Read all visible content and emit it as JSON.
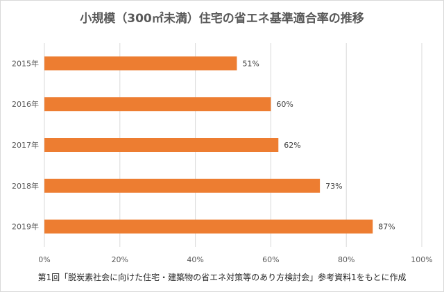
{
  "chart_data": {
    "type": "bar",
    "orientation": "horizontal",
    "title": "小規模（300㎡未満）住宅の省エネ基準適合率の推移",
    "categories": [
      "2015年",
      "2016年",
      "2017年",
      "2018年",
      "2019年"
    ],
    "values": [
      51,
      60,
      62,
      73,
      87
    ],
    "data_labels": [
      "51%",
      "60%",
      "62%",
      "73%",
      "87%"
    ],
    "xlim": [
      0,
      100
    ],
    "xticks": [
      0,
      20,
      40,
      60,
      80,
      100
    ],
    "xtick_labels": [
      "0%",
      "20%",
      "40%",
      "60%",
      "80%",
      "100%"
    ],
    "xlabel": "",
    "ylabel": "",
    "grid": true,
    "bar_color": "#ed7d31",
    "footnote": "第1回「脱炭素社会に向けた住宅・建築物の省エネ対策等のあり方検討会」参考資料1をもとに作成"
  }
}
